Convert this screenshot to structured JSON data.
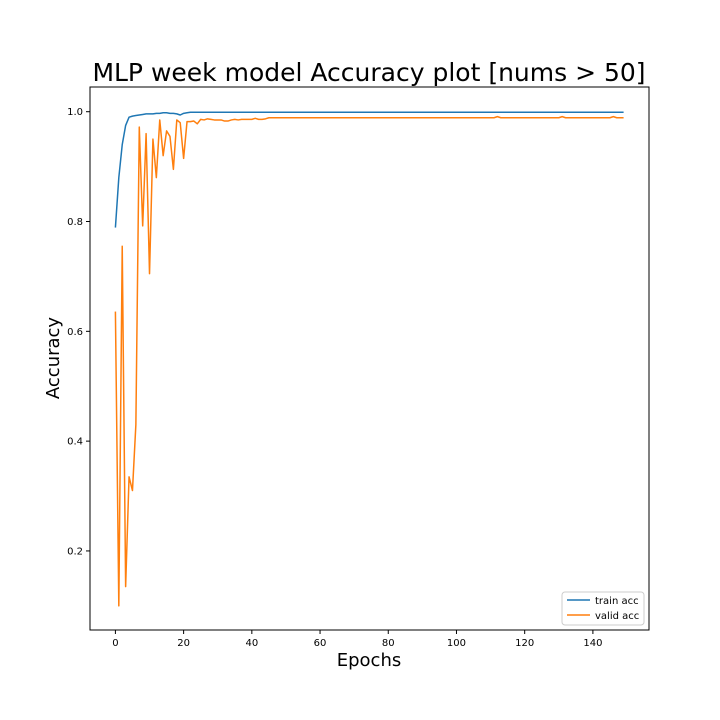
{
  "chart_data": {
    "type": "line",
    "title": "MLP week model Accuracy plot [nums > 50]",
    "xlabel": "Epochs",
    "ylabel": "Accuracy",
    "xlim": [
      -7.45,
      156.45
    ],
    "ylim": [
      0.056,
      1.045
    ],
    "xticks": [
      0,
      20,
      40,
      60,
      80,
      100,
      120,
      140
    ],
    "yticks": [
      0.2,
      0.4,
      0.6,
      0.8,
      1.0
    ],
    "xtick_labels": [
      "0",
      "20",
      "40",
      "60",
      "80",
      "100",
      "120",
      "140"
    ],
    "ytick_labels": [
      "0.2",
      "0.4",
      "0.6",
      "0.8",
      "1.0"
    ],
    "grid": false,
    "legend": {
      "placement": "lower-right",
      "labels": [
        "train acc",
        "valid acc"
      ]
    },
    "series": [
      {
        "name": "train acc",
        "color": "#1f77b4",
        "x": [
          0,
          1,
          2,
          3,
          4,
          5,
          6,
          7,
          8,
          9,
          10,
          11,
          12,
          13,
          14,
          15,
          16,
          17,
          18,
          19,
          20,
          21,
          22,
          23,
          24,
          30,
          40,
          60,
          80,
          100,
          112,
          113,
          120,
          140,
          149
        ],
        "y": [
          0.789,
          0.88,
          0.94,
          0.975,
          0.99,
          0.992,
          0.993,
          0.994,
          0.995,
          0.996,
          0.996,
          0.996,
          0.997,
          0.997,
          0.998,
          0.998,
          0.997,
          0.997,
          0.996,
          0.994,
          0.997,
          0.998,
          0.999,
          0.999,
          0.999,
          0.999,
          0.999,
          0.999,
          0.999,
          0.999,
          0.999,
          0.999,
          0.999,
          0.999,
          0.999
        ]
      },
      {
        "name": "valid acc",
        "color": "#ff7f0e",
        "x": [
          0,
          1,
          2,
          3,
          4,
          5,
          6,
          7,
          8,
          9,
          10,
          11,
          12,
          13,
          14,
          15,
          16,
          17,
          18,
          19,
          20,
          21,
          22,
          23,
          24,
          25,
          26,
          27,
          28,
          29,
          30,
          31,
          32,
          33,
          34,
          35,
          36,
          37,
          38,
          39,
          40,
          41,
          42,
          43,
          44,
          45,
          46,
          60,
          80,
          100,
          110,
          111,
          112,
          113,
          120,
          130,
          131,
          132,
          140,
          145,
          146,
          147,
          149
        ],
        "y": [
          0.636,
          0.1,
          0.755,
          0.135,
          0.335,
          0.31,
          0.43,
          0.972,
          0.792,
          0.96,
          0.705,
          0.95,
          0.88,
          0.985,
          0.92,
          0.965,
          0.955,
          0.895,
          0.985,
          0.98,
          0.915,
          0.982,
          0.982,
          0.983,
          0.978,
          0.986,
          0.985,
          0.987,
          0.986,
          0.985,
          0.985,
          0.985,
          0.983,
          0.983,
          0.985,
          0.986,
          0.985,
          0.986,
          0.986,
          0.986,
          0.986,
          0.988,
          0.986,
          0.986,
          0.987,
          0.989,
          0.989,
          0.989,
          0.989,
          0.989,
          0.989,
          0.989,
          0.991,
          0.989,
          0.989,
          0.989,
          0.991,
          0.989,
          0.989,
          0.989,
          0.991,
          0.989,
          0.989
        ]
      }
    ]
  }
}
